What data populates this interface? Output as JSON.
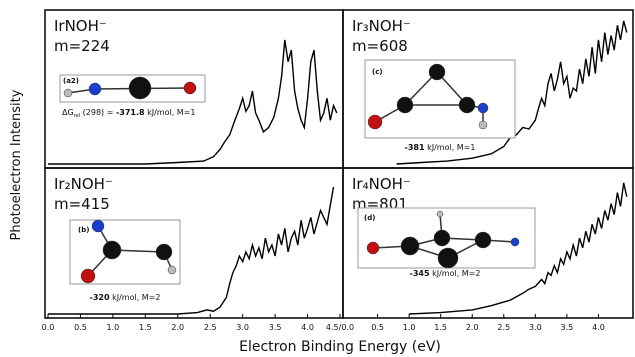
{
  "figure": {
    "ylabel": "Photoelectron Intensity",
    "xlabel": "Electron Binding Energy (eV)"
  },
  "chart_data": [
    {
      "type": "line",
      "title": "IrNOH⁻",
      "subtitle": "m=224",
      "annotation": {
        "label": "(a2)",
        "prefix": "ΔG",
        "prefix_sub": "rel",
        "prefix_rest": " (298) = ",
        "energy": "-371.8",
        "suffix": " kJ/mol, M=1"
      },
      "xlim": [
        0,
        4.5
      ],
      "ylim": [
        0,
        1
      ],
      "color": "#000000",
      "x": [
        0,
        0.5,
        1,
        1.5,
        2,
        2.4,
        2.55,
        2.65,
        2.72,
        2.8,
        2.88,
        2.95,
        3.0,
        3.05,
        3.1,
        3.15,
        3.2,
        3.25,
        3.32,
        3.4,
        3.48,
        3.55,
        3.6,
        3.65,
        3.7,
        3.75,
        3.8,
        3.85,
        3.9,
        3.95,
        4.0,
        4.05,
        4.1,
        4.15,
        4.2,
        4.25,
        4.3,
        4.35,
        4.4,
        4.45
      ],
      "values": [
        0,
        0,
        0,
        0,
        0.01,
        0.02,
        0.05,
        0.1,
        0.15,
        0.2,
        0.3,
        0.38,
        0.45,
        0.36,
        0.4,
        0.5,
        0.35,
        0.3,
        0.22,
        0.25,
        0.32,
        0.45,
        0.6,
        0.85,
        0.7,
        0.78,
        0.5,
        0.38,
        0.3,
        0.25,
        0.45,
        0.7,
        0.78,
        0.5,
        0.3,
        0.35,
        0.45,
        0.3,
        0.4,
        0.35
      ]
    },
    {
      "type": "line",
      "title": "Ir₃NOH⁻",
      "subtitle": "m=608",
      "annotation": {
        "label": "(c)",
        "energy": "-381",
        "suffix": " kJ/mol, M=1"
      },
      "xlim": [
        0,
        4.5
      ],
      "ylim": [
        0,
        1
      ],
      "color": "#000000",
      "x": [
        0.8,
        1.2,
        1.6,
        2.0,
        2.3,
        2.5,
        2.6,
        2.7,
        2.8,
        2.9,
        3.0,
        3.05,
        3.1,
        3.15,
        3.2,
        3.25,
        3.3,
        3.35,
        3.4,
        3.45,
        3.5,
        3.55,
        3.6,
        3.65,
        3.7,
        3.75,
        3.8,
        3.85,
        3.9,
        3.95,
        4.0,
        4.05,
        4.1,
        4.15,
        4.2,
        4.25,
        4.3,
        4.35,
        4.4,
        4.45
      ],
      "values": [
        0,
        0.01,
        0.02,
        0.04,
        0.07,
        0.12,
        0.18,
        0.2,
        0.25,
        0.24,
        0.3,
        0.38,
        0.45,
        0.4,
        0.55,
        0.62,
        0.5,
        0.58,
        0.7,
        0.55,
        0.6,
        0.45,
        0.52,
        0.5,
        0.65,
        0.55,
        0.72,
        0.6,
        0.8,
        0.62,
        0.85,
        0.7,
        0.9,
        0.75,
        0.88,
        0.78,
        0.95,
        0.85,
        0.98,
        0.9
      ]
    },
    {
      "type": "line",
      "title": "Ir₂NOH⁻",
      "subtitle": "m=415",
      "annotation": {
        "label": "(b)",
        "energy": "-320",
        "suffix": " kJ/mol, M=2"
      },
      "xlim": [
        0,
        4.5
      ],
      "ylim": [
        0,
        1
      ],
      "color": "#000000",
      "xticks": [
        {
          "value": 0,
          "label": "0.0"
        },
        0.5,
        {
          "value": 1,
          "label": "1.0"
        },
        1.5,
        {
          "value": 2,
          "label": "2.0"
        },
        2.5,
        {
          "value": 3,
          "label": "3.0"
        },
        3.5,
        {
          "value": 4,
          "label": "4.0"
        },
        {
          "value": 4.5,
          "label": "4.5/0.0"
        }
      ],
      "x": [
        0,
        0.5,
        1,
        1.5,
        2,
        2.3,
        2.45,
        2.55,
        2.65,
        2.75,
        2.8,
        2.85,
        2.9,
        2.95,
        3.0,
        3.05,
        3.1,
        3.15,
        3.2,
        3.25,
        3.3,
        3.35,
        3.4,
        3.45,
        3.5,
        3.55,
        3.6,
        3.65,
        3.7,
        3.75,
        3.8,
        3.85,
        3.9,
        3.95,
        4.0,
        4.05,
        4.1,
        4.2,
        4.3,
        4.4
      ],
      "values": [
        0,
        0,
        0,
        0,
        0,
        0.01,
        0.03,
        0.02,
        0.05,
        0.12,
        0.22,
        0.3,
        0.35,
        0.42,
        0.38,
        0.45,
        0.4,
        0.5,
        0.42,
        0.48,
        0.4,
        0.55,
        0.45,
        0.5,
        0.42,
        0.58,
        0.5,
        0.62,
        0.45,
        0.55,
        0.6,
        0.5,
        0.68,
        0.55,
        0.62,
        0.7,
        0.58,
        0.75,
        0.65,
        0.92
      ]
    },
    {
      "type": "line",
      "title": "Ir₄NOH⁻",
      "subtitle": "m=801",
      "annotation": {
        "label": "(d)",
        "energy": "-345",
        "suffix": " kJ/mol, M=2"
      },
      "xlim": [
        0,
        4.5
      ],
      "ylim": [
        0,
        1
      ],
      "color": "#000000",
      "xticks": [
        0.5,
        {
          "value": 1,
          "label": "1.0"
        },
        1.5,
        {
          "value": 2,
          "label": "2.0"
        },
        2.5,
        {
          "value": 3,
          "label": "3.0"
        },
        3.5,
        {
          "value": 4,
          "label": "4.0"
        }
      ],
      "x": [
        1.0,
        1.5,
        2.0,
        2.3,
        2.6,
        2.8,
        2.9,
        3.0,
        3.1,
        3.15,
        3.2,
        3.25,
        3.3,
        3.35,
        3.4,
        3.45,
        3.5,
        3.55,
        3.6,
        3.65,
        3.7,
        3.75,
        3.8,
        3.85,
        3.9,
        3.95,
        4.0,
        4.05,
        4.1,
        4.15,
        4.2,
        4.25,
        4.3,
        4.35,
        4.4,
        4.45
      ],
      "values": [
        0,
        0.01,
        0.03,
        0.06,
        0.1,
        0.15,
        0.18,
        0.2,
        0.25,
        0.22,
        0.3,
        0.28,
        0.35,
        0.3,
        0.4,
        0.36,
        0.45,
        0.4,
        0.5,
        0.42,
        0.55,
        0.48,
        0.6,
        0.52,
        0.65,
        0.58,
        0.7,
        0.62,
        0.75,
        0.68,
        0.8,
        0.72,
        0.88,
        0.78,
        0.95,
        0.85
      ]
    }
  ]
}
